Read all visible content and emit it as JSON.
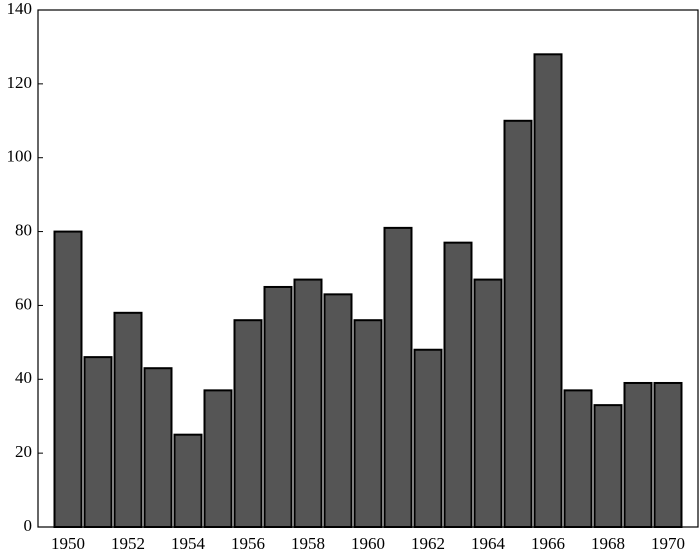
{
  "chart_data": {
    "type": "bar",
    "x": [
      1950,
      1951,
      1952,
      1953,
      1954,
      1955,
      1956,
      1957,
      1958,
      1959,
      1960,
      1961,
      1962,
      1963,
      1964,
      1965,
      1966,
      1967,
      1968,
      1969,
      1970
    ],
    "values": [
      80,
      46,
      58,
      43,
      25,
      37,
      56,
      65,
      67,
      63,
      56,
      81,
      48,
      77,
      67,
      110,
      128,
      37,
      33,
      39,
      39
    ],
    "color": "#555555",
    "xlim": [
      1949,
      1971
    ],
    "xticks": [
      1950,
      1952,
      1954,
      1956,
      1958,
      1960,
      1962,
      1964,
      1966,
      1968,
      1970
    ],
    "ylim": [
      0,
      140
    ],
    "yticks": [
      0,
      20,
      40,
      60,
      80,
      100,
      120,
      140
    ]
  }
}
